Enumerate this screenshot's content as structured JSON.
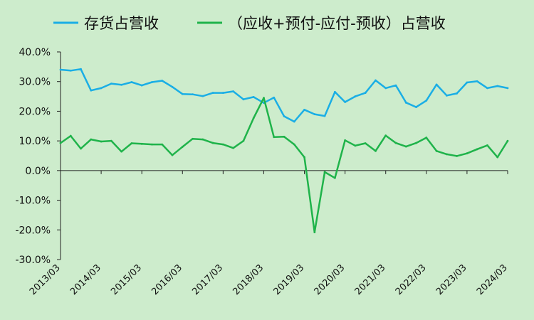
{
  "chart_data": {
    "type": "line",
    "x": [
      "2013/03",
      "2013/06",
      "2013/09",
      "2013/12",
      "2014/03",
      "2014/06",
      "2014/09",
      "2014/12",
      "2015/03",
      "2015/06",
      "2015/09",
      "2015/12",
      "2016/03",
      "2016/06",
      "2016/09",
      "2016/12",
      "2017/03",
      "2017/06",
      "2017/09",
      "2017/12",
      "2018/03",
      "2018/06",
      "2018/09",
      "2018/12",
      "2019/03",
      "2019/06",
      "2019/09",
      "2019/12",
      "2020/03",
      "2020/06",
      "2020/09",
      "2020/12",
      "2021/03",
      "2021/06",
      "2021/09",
      "2021/12",
      "2022/03",
      "2022/06",
      "2022/09",
      "2022/12",
      "2023/03",
      "2023/06",
      "2023/09",
      "2023/12",
      "2024/03"
    ],
    "x_tick_labels": [
      "2013/03",
      "2014/03",
      "2015/03",
      "2016/03",
      "2017/03",
      "2018/03",
      "2019/03",
      "2020/03",
      "2021/03",
      "2022/03",
      "2023/03",
      "2024/03"
    ],
    "y_tick_labels": [
      "40.0%",
      "30.0%",
      "20.0%",
      "10.0%",
      "0.0%",
      "-10.0%",
      "-20.0%",
      "-30.0%"
    ],
    "ylim": [
      -30,
      40
    ],
    "y_unit": "%",
    "grid": false,
    "legend_position": "top",
    "series": [
      {
        "name": "存货占营收",
        "color": "#1aaee5",
        "values": [
          34.0,
          33.7,
          34.2,
          27.0,
          27.8,
          29.3,
          28.9,
          29.8,
          28.7,
          29.8,
          30.3,
          28.2,
          25.8,
          25.7,
          25.1,
          26.2,
          26.2,
          26.7,
          24.0,
          24.8,
          22.8,
          24.6,
          18.3,
          16.5,
          20.5,
          19.0,
          18.4,
          26.5,
          23.1,
          25.0,
          26.2,
          30.4,
          27.8,
          28.7,
          22.9,
          21.4,
          23.6,
          29.0,
          25.3,
          26.0,
          29.7,
          30.1,
          27.8,
          28.5,
          27.8
        ]
      },
      {
        "name": "（应收+预付-应付-预收）占营收",
        "color": "#1fb34a",
        "values": [
          9.3,
          11.7,
          7.4,
          10.5,
          9.8,
          10.0,
          6.4,
          9.2,
          9.0,
          8.8,
          8.8,
          5.2,
          8.0,
          10.7,
          10.5,
          9.3,
          8.8,
          7.6,
          10.0,
          17.7,
          24.5,
          11.3,
          11.4,
          8.8,
          4.5,
          -20.8,
          -0.5,
          -2.5,
          10.2,
          8.4,
          9.2,
          6.6,
          11.8,
          9.3,
          8.1,
          9.3,
          11.1,
          6.6,
          5.5,
          4.9,
          5.8,
          7.2,
          8.5,
          4.5,
          10.0
        ]
      }
    ]
  }
}
